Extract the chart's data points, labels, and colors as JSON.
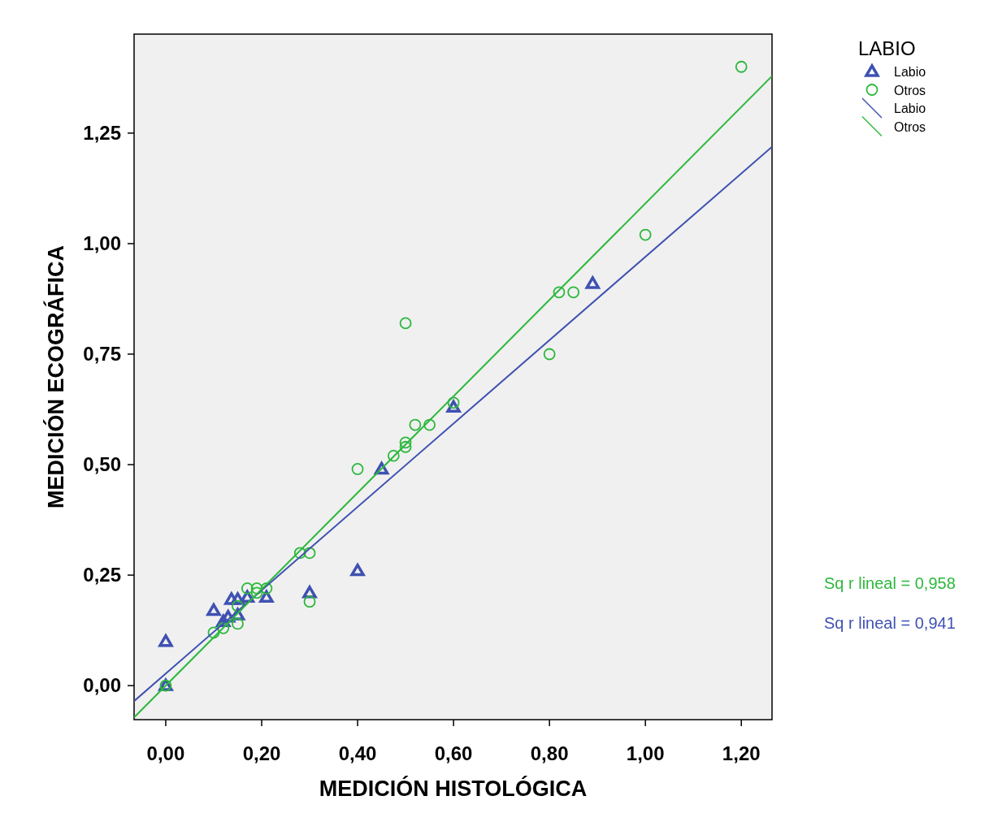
{
  "chart_data": {
    "type": "scatter",
    "xlabel": "MEDICIÓN HISTOLÓGICA",
    "ylabel": "MEDICIÓN ECOGRÁFICA",
    "legend_title": "LABIO",
    "legend": "top right",
    "grid": false,
    "xlim": [
      -0.066,
      1.264
    ],
    "ylim": [
      -0.077,
      1.474
    ],
    "xticks": [
      {
        "value": 0,
        "label": "0,00"
      },
      {
        "value": 0.2,
        "label": "0,20"
      },
      {
        "value": 0.4,
        "label": "0,40"
      },
      {
        "value": 0.6,
        "label": "0,60"
      },
      {
        "value": 0.8,
        "label": "0,80"
      },
      {
        "value": 1,
        "label": "1,00"
      },
      {
        "value": 1.2,
        "label": "1,20"
      }
    ],
    "yticks": [
      {
        "value": 0,
        "label": "0,00"
      },
      {
        "value": 0.25,
        "label": "0,25"
      },
      {
        "value": 0.5,
        "label": "0,50"
      },
      {
        "value": 0.75,
        "label": "0,75"
      },
      {
        "value": 1,
        "label": "1,00"
      },
      {
        "value": 1.25,
        "label": "1,25"
      }
    ],
    "series": [
      {
        "name": "Labio",
        "marker": "triangle",
        "color": "#3f51b1",
        "x": [
          0,
          0,
          0.1,
          0.137,
          0.15,
          0.17,
          0.21,
          0.13,
          0.12,
          0.15,
          0.3,
          0.4,
          0.45,
          0.6,
          0.89
        ],
        "values": [
          0,
          0.1,
          0.17,
          0.195,
          0.195,
          0.2,
          0.2,
          0.155,
          0.145,
          0.16,
          0.21,
          0.26,
          0.49,
          0.63,
          0.91
        ]
      },
      {
        "name": "Otros",
        "marker": "circle",
        "color": "#2db83d",
        "x": [
          0,
          0.1,
          0.12,
          0.15,
          0.15,
          0.17,
          0.19,
          0.19,
          0.21,
          0.28,
          0.3,
          0.3,
          0.4,
          0.475,
          0.5,
          0.5,
          0.52,
          0.55,
          0.5,
          0.6,
          0.8,
          0.82,
          0.85,
          1,
          1.2
        ],
        "values": [
          0,
          0.12,
          0.13,
          0.14,
          0.18,
          0.22,
          0.22,
          0.21,
          0.22,
          0.3,
          0.3,
          0.19,
          0.49,
          0.52,
          0.55,
          0.54,
          0.59,
          0.59,
          0.82,
          0.64,
          0.75,
          0.89,
          0.89,
          1.02,
          1.4
        ]
      },
      {
        "name": "Labio",
        "type": "line",
        "color": "#3f51b1",
        "x": [
          -0.066,
          1.264
        ],
        "values": [
          -0.035,
          1.219
        ]
      },
      {
        "name": "Otros",
        "type": "line",
        "color": "#2db83d",
        "x": [
          -0.066,
          1.264
        ],
        "values": [
          -0.072,
          1.379
        ]
      }
    ],
    "annotations": [
      "Sq r lineal = 0,958",
      "Sq r lineal = 0,941"
    ]
  }
}
